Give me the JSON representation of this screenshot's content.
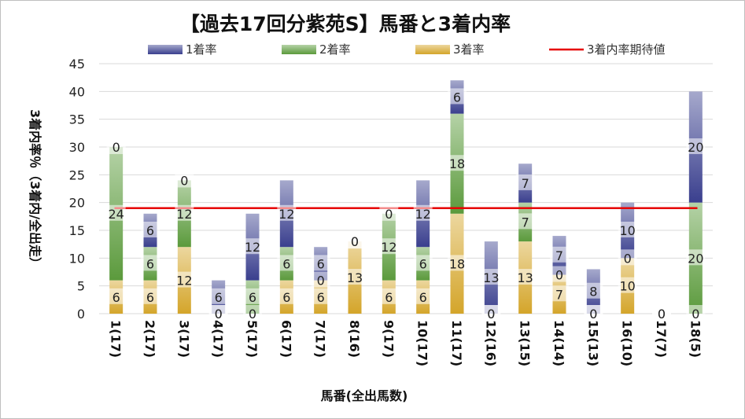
{
  "chart_data": {
    "type": "bar",
    "stacked": true,
    "title": "【過去17回分紫苑S】馬番と3着内率",
    "xlabel": "馬番(全出馬数)",
    "ylabel": "3着内率％（3着内/全出走）",
    "ylim": [
      0,
      45
    ],
    "yticks": [
      0,
      5,
      10,
      15,
      20,
      25,
      30,
      35,
      40,
      45
    ],
    "grid": true,
    "legend_position": "top",
    "categories": [
      "1(17)",
      "2(17)",
      "3(17)",
      "4(17)",
      "5(17)",
      "6(17)",
      "7(17)",
      "8(16)",
      "9(17)",
      "10(17)",
      "11(17)",
      "12(16)",
      "13(15)",
      "14(14)",
      "15(13)",
      "16(10)",
      "17(7)",
      "18(5)"
    ],
    "series": [
      {
        "name": "3着率",
        "color": "#d4a52a",
        "values": [
          6,
          6,
          12,
          0,
          0,
          6,
          6,
          13,
          6,
          6,
          18,
          0,
          13,
          7,
          0,
          10,
          0,
          0
        ],
        "labels": [
          "6",
          "6",
          "12",
          "0",
          "0",
          "6",
          "6",
          "13",
          "6",
          "6",
          "18",
          "0",
          "13",
          "7",
          "0",
          "10",
          "0",
          "0"
        ]
      },
      {
        "name": "2着率",
        "color": "#5b9a3c",
        "values": [
          24,
          6,
          12,
          0,
          6,
          6,
          0,
          0,
          12,
          6,
          18,
          0,
          7,
          0,
          0,
          0,
          0,
          20
        ],
        "labels": [
          "24",
          "6",
          "12",
          "0",
          "6",
          "6",
          "0",
          "0",
          "12",
          "6",
          "18",
          "0",
          "7",
          "0",
          "0",
          "0",
          "0",
          "20"
        ]
      },
      {
        "name": "1着率",
        "color": "#3a3f8e",
        "values": [
          0,
          6,
          0,
          6,
          12,
          12,
          6,
          0,
          0,
          12,
          6,
          13,
          7,
          7,
          8,
          10,
          0,
          20
        ],
        "labels": [
          "0",
          "6",
          "0",
          "6",
          "12",
          "12",
          "6",
          "0",
          "0",
          "12",
          "6",
          "13",
          "7",
          "7",
          "8",
          "10",
          "0",
          "20"
        ]
      }
    ],
    "reference_line": {
      "name": "3着内率期待値",
      "color": "#e60000",
      "value": 19
    }
  },
  "legend": [
    {
      "name": "1着率",
      "color": "#3a3f8e",
      "kind": "bar"
    },
    {
      "name": "2着率",
      "color": "#5b9a3c",
      "kind": "bar"
    },
    {
      "name": "3着率",
      "color": "#d4a52a",
      "kind": "bar"
    },
    {
      "name": "3着内率期待値",
      "color": "#e60000",
      "kind": "line"
    }
  ]
}
